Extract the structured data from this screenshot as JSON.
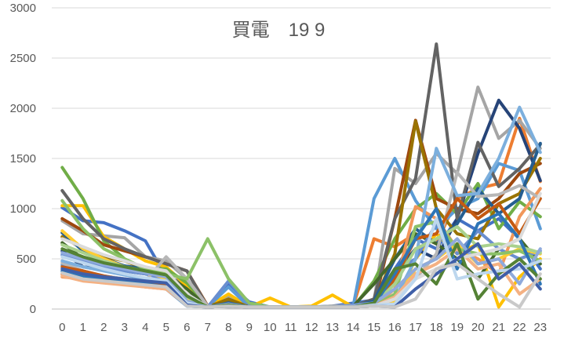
{
  "chart_data": {
    "type": "line",
    "title": "買電　19 9",
    "xlabel": "",
    "ylabel": "",
    "categories": [
      "0",
      "1",
      "2",
      "3",
      "4",
      "5",
      "6",
      "7",
      "8",
      "9",
      "10",
      "11",
      "12",
      "13",
      "14",
      "15",
      "16",
      "17",
      "18",
      "19",
      "20",
      "21",
      "22",
      "23"
    ],
    "ylim": [
      0,
      3000
    ],
    "yticks": [
      0,
      500,
      1000,
      1500,
      2000,
      2500,
      3000
    ],
    "grid": true,
    "legend": "none",
    "series": [
      {
        "color": "#4472C4",
        "values": [
          1010,
          880,
          860,
          780,
          680,
          320,
          250,
          20,
          250,
          70,
          20,
          20,
          20,
          30,
          60,
          90,
          400,
          700,
          600,
          900,
          780,
          900,
          700,
          400
        ]
      },
      {
        "color": "#ED7D31",
        "values": [
          350,
          300,
          280,
          250,
          220,
          200,
          100,
          20,
          60,
          20,
          20,
          20,
          20,
          20,
          30,
          700,
          620,
          750,
          650,
          1100,
          1200,
          1250,
          1900,
          1270
        ]
      },
      {
        "color": "#A5A5A5",
        "values": [
          880,
          750,
          730,
          710,
          520,
          480,
          300,
          30,
          120,
          30,
          20,
          20,
          20,
          30,
          40,
          80,
          1400,
          1250,
          1550,
          1350,
          2210,
          1700,
          1880,
          1600
        ]
      },
      {
        "color": "#FFC000",
        "values": [
          1030,
          1030,
          720,
          600,
          480,
          420,
          230,
          20,
          150,
          20,
          110,
          20,
          30,
          140,
          20,
          40,
          60,
          500,
          750,
          550,
          650,
          20,
          320,
          500
        ]
      },
      {
        "color": "#5B9BD5",
        "values": [
          440,
          380,
          330,
          300,
          260,
          200,
          30,
          20,
          220,
          20,
          20,
          20,
          20,
          20,
          30,
          1100,
          1500,
          1080,
          800,
          1000,
          1100,
          1450,
          1380,
          800
        ]
      },
      {
        "color": "#70AD47",
        "values": [
          1410,
          1100,
          680,
          500,
          400,
          400,
          260,
          30,
          80,
          20,
          20,
          20,
          20,
          20,
          20,
          280,
          700,
          1000,
          1150,
          950,
          1250,
          800,
          1070,
          920
        ]
      },
      {
        "color": "#264478",
        "values": [
          580,
          420,
          400,
          380,
          350,
          300,
          80,
          20,
          60,
          20,
          20,
          20,
          20,
          20,
          30,
          60,
          350,
          600,
          500,
          900,
          1550,
          2080,
          1800,
          1280
        ]
      },
      {
        "color": "#9E480E",
        "values": [
          900,
          780,
          640,
          580,
          520,
          450,
          380,
          30,
          40,
          20,
          20,
          20,
          20,
          20,
          30,
          40,
          900,
          1880,
          1100,
          1000,
          950,
          1100,
          1350,
          1450
        ]
      },
      {
        "color": "#636363",
        "values": [
          1180,
          900,
          700,
          600,
          520,
          450,
          380,
          20,
          90,
          20,
          20,
          20,
          20,
          20,
          30,
          100,
          900,
          1300,
          2640,
          900,
          1660,
          1220,
          1400,
          1640
        ]
      },
      {
        "color": "#997300",
        "values": [
          720,
          600,
          520,
          480,
          400,
          350,
          200,
          20,
          100,
          20,
          20,
          20,
          20,
          20,
          30,
          60,
          550,
          1870,
          1000,
          750,
          700,
          1050,
          1150,
          1500
        ]
      },
      {
        "color": "#255E91",
        "values": [
          760,
          580,
          500,
          430,
          400,
          320,
          150,
          20,
          60,
          20,
          20,
          20,
          20,
          20,
          30,
          80,
          500,
          800,
          650,
          850,
          1200,
          950,
          1100,
          1650
        ]
      },
      {
        "color": "#43682B",
        "values": [
          660,
          500,
          450,
          420,
          380,
          340,
          200,
          20,
          40,
          20,
          20,
          20,
          20,
          20,
          30,
          250,
          500,
          750,
          650,
          500,
          300,
          600,
          700,
          450
        ]
      },
      {
        "color": "#698ED0",
        "values": [
          540,
          480,
          420,
          380,
          350,
          300,
          50,
          20,
          280,
          50,
          20,
          20,
          20,
          20,
          40,
          60,
          380,
          500,
          850,
          550,
          780,
          600,
          500,
          580
        ]
      },
      {
        "color": "#F1975A",
        "values": [
          320,
          300,
          280,
          260,
          240,
          220,
          50,
          20,
          30,
          20,
          20,
          20,
          20,
          20,
          20,
          30,
          200,
          1020,
          900,
          600,
          500,
          350,
          920,
          1200
        ]
      },
      {
        "color": "#B7B7B7",
        "values": [
          460,
          380,
          330,
          300,
          280,
          520,
          300,
          30,
          20,
          20,
          20,
          20,
          20,
          20,
          20,
          30,
          100,
          300,
          550,
          1360,
          1120,
          1140,
          1230,
          1100
        ]
      },
      {
        "color": "#FFCD33",
        "values": [
          780,
          600,
          500,
          420,
          380,
          300,
          100,
          20,
          40,
          20,
          20,
          20,
          20,
          20,
          20,
          30,
          80,
          400,
          500,
          650,
          450,
          500,
          600,
          550
        ]
      },
      {
        "color": "#7CAFDD",
        "values": [
          480,
          420,
          380,
          340,
          300,
          260,
          40,
          20,
          30,
          20,
          20,
          20,
          20,
          20,
          20,
          30,
          100,
          500,
          1600,
          1130,
          1150,
          1500,
          2010,
          1560
        ]
      },
      {
        "color": "#8CC168",
        "values": [
          1080,
          800,
          600,
          500,
          400,
          350,
          300,
          700,
          300,
          60,
          20,
          20,
          20,
          20,
          20,
          30,
          150,
          820,
          870,
          600,
          550,
          550,
          580,
          480
        ]
      },
      {
        "color": "#C55A11",
        "values": [
          420,
          380,
          330,
          290,
          260,
          240,
          60,
          20,
          30,
          20,
          20,
          20,
          20,
          20,
          20,
          40,
          300,
          700,
          750,
          1100,
          900,
          1050,
          750,
          1100
        ]
      },
      {
        "color": "#A9D18E",
        "values": [
          640,
          560,
          480,
          420,
          380,
          330,
          120,
          20,
          40,
          20,
          20,
          20,
          20,
          20,
          20,
          50,
          250,
          600,
          700,
          820,
          620,
          650,
          620,
          560
        ]
      },
      {
        "color": "#2E75B6",
        "values": [
          380,
          320,
          300,
          280,
          250,
          220,
          30,
          20,
          30,
          20,
          20,
          20,
          20,
          20,
          20,
          40,
          350,
          700,
          1000,
          400,
          850,
          950,
          700,
          250
        ]
      },
      {
        "color": "#8FAADC",
        "values": [
          560,
          500,
          440,
          400,
          360,
          320,
          80,
          20,
          50,
          20,
          20,
          20,
          20,
          20,
          30,
          60,
          200,
          400,
          500,
          700,
          450,
          500,
          250,
          600
        ]
      },
      {
        "color": "#F4B183",
        "values": [
          330,
          280,
          260,
          240,
          220,
          200,
          40,
          20,
          30,
          20,
          20,
          20,
          20,
          20,
          20,
          30,
          120,
          350,
          450,
          600,
          400,
          450,
          150,
          300
        ]
      },
      {
        "color": "#DBDBDB",
        "values": [
          700,
          620,
          540,
          480,
          420,
          380,
          150,
          20,
          40,
          20,
          20,
          20,
          20,
          20,
          20,
          30,
          100,
          300,
          400,
          500,
          550,
          600,
          700,
          1150
        ]
      },
      {
        "color": "#548235",
        "values": [
          600,
          520,
          460,
          420,
          380,
          340,
          130,
          20,
          40,
          20,
          20,
          20,
          20,
          20,
          20,
          60,
          400,
          450,
          250,
          650,
          100,
          350,
          500,
          300
        ]
      },
      {
        "color": "#BDD7EE",
        "values": [
          520,
          460,
          400,
          350,
          310,
          280,
          60,
          20,
          30,
          20,
          20,
          20,
          20,
          20,
          20,
          40,
          50,
          300,
          900,
          300,
          350,
          380,
          400,
          480
        ]
      },
      {
        "color": "#3F5FA8",
        "values": [
          400,
          350,
          320,
          300,
          280,
          260,
          40,
          20,
          30,
          20,
          20,
          20,
          20,
          20,
          20,
          30,
          20,
          200,
          350,
          500,
          650,
          300,
          450,
          200
        ]
      },
      {
        "color": "#C9C9C9",
        "values": [
          360,
          300,
          280,
          260,
          240,
          220,
          30,
          20,
          30,
          20,
          20,
          20,
          20,
          20,
          20,
          30,
          20,
          100,
          400,
          450,
          300,
          150,
          20,
          350
        ]
      }
    ]
  }
}
